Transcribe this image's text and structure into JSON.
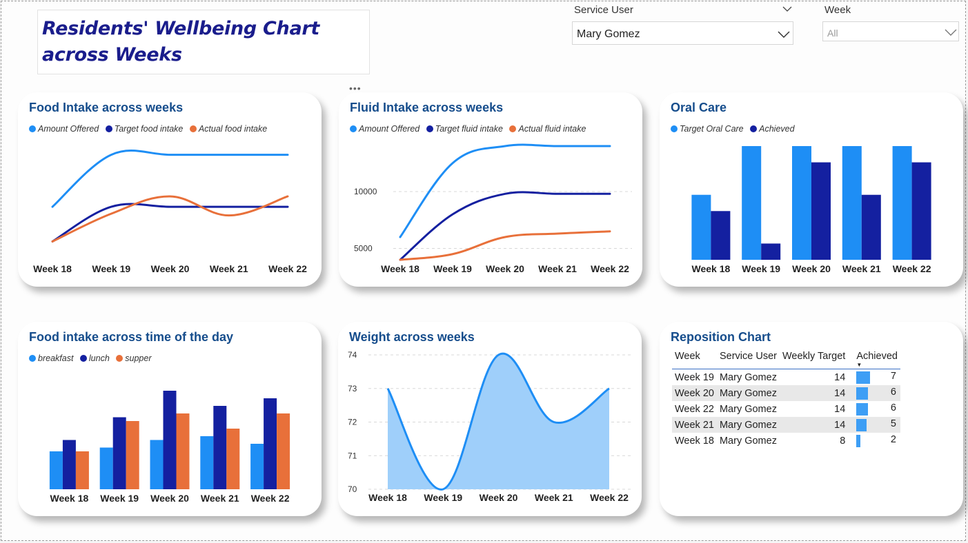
{
  "title": "Residents' Wellbeing Chart across Weeks",
  "slicers": {
    "service_user": {
      "label": "Service User",
      "value": "Mary Gomez"
    },
    "week": {
      "label": "Week",
      "value": "All"
    }
  },
  "colors": {
    "light_blue": "#1e8ef5",
    "dark_blue": "#1420a0",
    "orange": "#e8703a",
    "title_blue": "#164d8c",
    "area_fill": "#9fcffa"
  },
  "chart_data": [
    {
      "id": "food_intake",
      "type": "line",
      "title": "Food Intake across weeks",
      "categories": [
        "Week 18",
        "Week 19",
        "Week 20",
        "Week 21",
        "Week 22"
      ],
      "series": [
        {
          "name": "Amount Offered",
          "color": "#1e8ef5",
          "values": [
            3,
            6,
            6,
            6,
            6
          ]
        },
        {
          "name": "Target food intake",
          "color": "#1420a0",
          "values": [
            1,
            3,
            3,
            3,
            3
          ]
        },
        {
          "name": "Actual food intake",
          "color": "#e8703a",
          "values": [
            1,
            2.6,
            3.6,
            2.5,
            3.6
          ]
        }
      ],
      "ylim": [
        0.5,
        6.5
      ]
    },
    {
      "id": "fluid_intake",
      "type": "line",
      "title": "Fluid Intake across weeks",
      "categories": [
        "Week 18",
        "Week 19",
        "Week 20",
        "Week 21",
        "Week 22"
      ],
      "yticks": [
        5000,
        10000
      ],
      "ylim": [
        4000,
        14000
      ],
      "series": [
        {
          "name": "Amount Offered",
          "color": "#1e8ef5",
          "values": [
            6000,
            12500,
            14000,
            14000,
            14000
          ]
        },
        {
          "name": "Target fluid intake",
          "color": "#1420a0",
          "values": [
            4000,
            8000,
            9800,
            9800,
            9800
          ]
        },
        {
          "name": "Actual fluid intake",
          "color": "#e8703a",
          "values": [
            4000,
            4500,
            6000,
            6300,
            6500
          ]
        }
      ]
    },
    {
      "id": "oral_care",
      "type": "bar",
      "title": "Oral Care",
      "categories": [
        "Week 18",
        "Week 19",
        "Week 20",
        "Week 21",
        "Week 22"
      ],
      "ylim": [
        0,
        14
      ],
      "series": [
        {
          "name": "Target Oral Care",
          "color": "#1e8ef5",
          "values": [
            8,
            14,
            14,
            14,
            14
          ]
        },
        {
          "name": "Achieved",
          "color": "#1420a0",
          "values": [
            6,
            2,
            12,
            8,
            12
          ]
        }
      ]
    },
    {
      "id": "food_time_of_day",
      "type": "bar",
      "title": "Food intake across time of the day",
      "categories": [
        "Week 18",
        "Week 19",
        "Week 20",
        "Week 21",
        "Week 22"
      ],
      "ylim": [
        0,
        26
      ],
      "series": [
        {
          "name": "breakfast",
          "color": "#1e8ef5",
          "values": [
            10,
            11,
            13,
            14,
            12
          ]
        },
        {
          "name": "lunch",
          "color": "#1420a0",
          "values": [
            13,
            19,
            26,
            22,
            24
          ]
        },
        {
          "name": "supper",
          "color": "#e8703a",
          "values": [
            10,
            18,
            20,
            16,
            20
          ]
        }
      ]
    },
    {
      "id": "weight",
      "type": "area",
      "title": "Weight across weeks",
      "categories": [
        "Week 18",
        "Week 19",
        "Week 20",
        "Week 21",
        "Week 22"
      ],
      "yticks": [
        70,
        71,
        72,
        73,
        74
      ],
      "ylim": [
        70,
        74
      ],
      "series": [
        {
          "name": "",
          "color": "#1e8ef5",
          "values": [
            73,
            70,
            74,
            72,
            73
          ]
        }
      ]
    }
  ],
  "reposition": {
    "title": "Reposition Chart",
    "columns": [
      "Week",
      "Service User",
      "Weekly Target",
      "Achieved"
    ],
    "max_achieved": 7,
    "rows": [
      {
        "week": "Week 19",
        "user": "Mary Gomez",
        "target": "14",
        "achieved": "7"
      },
      {
        "week": "Week 20",
        "user": "Mary Gomez",
        "target": "14",
        "achieved": "6"
      },
      {
        "week": "Week 22",
        "user": "Mary Gomez",
        "target": "14",
        "achieved": "6"
      },
      {
        "week": "Week 21",
        "user": "Mary Gomez",
        "target": "14",
        "achieved": "5"
      },
      {
        "week": "Week 18",
        "user": "Mary Gomez",
        "target": "8",
        "achieved": "2"
      }
    ]
  }
}
